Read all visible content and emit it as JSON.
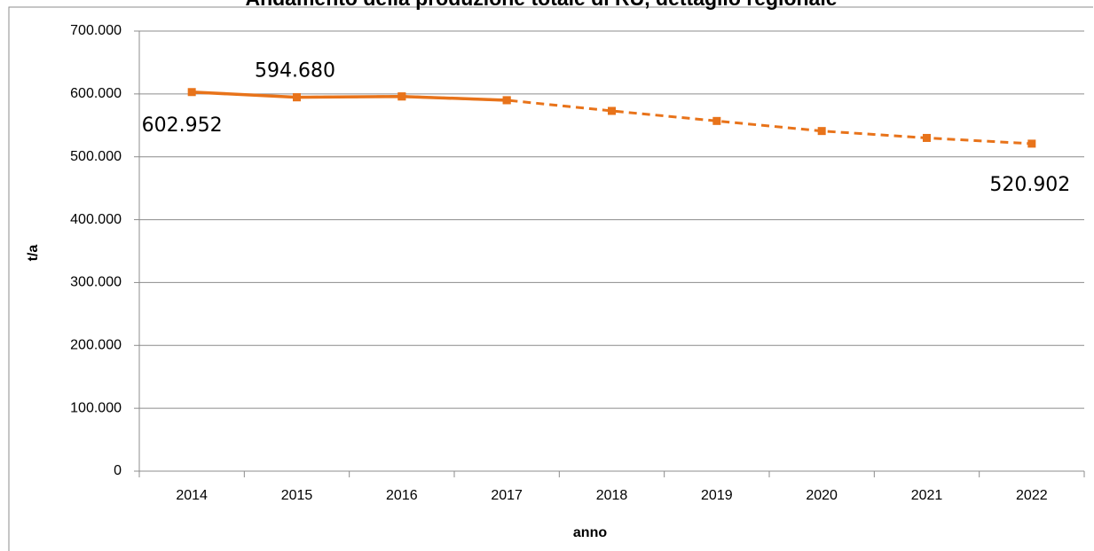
{
  "chart_data": {
    "type": "line",
    "title": "Andamento della produzione totale di RU, dettaglio regionale",
    "x_label": "anno",
    "y_label": "t/a",
    "categories": [
      "2014",
      "2015",
      "2016",
      "2017",
      "2018",
      "2019",
      "2020",
      "2021",
      "2022"
    ],
    "series": [
      {
        "color": "#e8731a",
        "dash": false,
        "marker": "square",
        "values": [
          602952,
          594680,
          596000,
          590000,
          null,
          null,
          null,
          null,
          null
        ],
        "value_labels": [
          "602.952",
          "594.680",
          null,
          null,
          null,
          null,
          null,
          null,
          null
        ]
      },
      {
        "color": "#e8731a",
        "dash": true,
        "marker": "square",
        "values": [
          null,
          594680,
          596000,
          590000,
          573000,
          557000,
          541000,
          530000,
          520902
        ],
        "value_labels": [
          null,
          null,
          null,
          null,
          null,
          null,
          null,
          null,
          "520.902"
        ]
      }
    ],
    "ylim": [
      0,
      700000
    ],
    "yticks": [
      0,
      {
        "value": 100000,
        "label": "100.000"
      },
      {
        "value": 200000,
        "label": "200.000"
      },
      {
        "value": 300000,
        "label": "300.000"
      },
      {
        "value": 400000,
        "label": "400.000"
      },
      {
        "value": 500000,
        "label": "500.000"
      },
      {
        "value": 600000,
        "label": "600.000"
      },
      {
        "value": 700000,
        "label": "700.000"
      }
    ],
    "grid": true
  }
}
